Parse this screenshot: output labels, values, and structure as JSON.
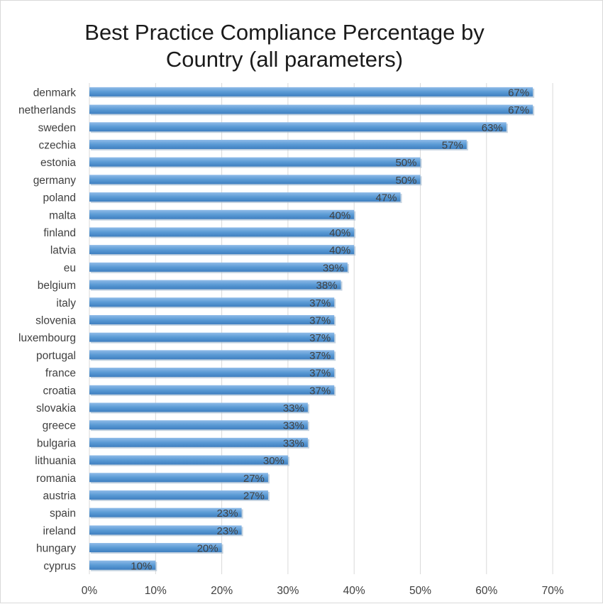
{
  "chart_data": {
    "type": "bar",
    "orientation": "horizontal",
    "title_lines": [
      "Best Practice Compliance Percentage by",
      "Country (all parameters)"
    ],
    "categories": [
      "denmark",
      "netherlands",
      "sweden",
      "czechia",
      "estonia",
      "germany",
      "poland",
      "malta",
      "finland",
      "latvia",
      "eu",
      "belgium",
      "italy",
      "slovenia",
      "luxembourg",
      "portugal",
      "france",
      "croatia",
      "slovakia",
      "greece",
      "bulgaria",
      "lithuania",
      "romania",
      "austria",
      "spain",
      "ireland",
      "hungary",
      "cyprus"
    ],
    "values": [
      67,
      67,
      63,
      57,
      50,
      50,
      47,
      40,
      40,
      40,
      39,
      38,
      37,
      37,
      37,
      37,
      37,
      37,
      33,
      33,
      33,
      30,
      27,
      27,
      23,
      23,
      20,
      10
    ],
    "data_labels": [
      "67%",
      "67%",
      "63%",
      "57%",
      "50%",
      "50%",
      "47%",
      "40%",
      "40%",
      "40%",
      "39%",
      "38%",
      "37%",
      "37%",
      "37%",
      "37%",
      "37%",
      "37%",
      "33%",
      "33%",
      "33%",
      "30%",
      "27%",
      "27%",
      "23%",
      "23%",
      "20%",
      "10%"
    ],
    "x_ticks": [
      "0%",
      "10%",
      "20%",
      "30%",
      "40%",
      "50%",
      "60%",
      "70%"
    ],
    "xlim": [
      0,
      70
    ],
    "grid": true,
    "bar_color": "#5b9bd5"
  }
}
